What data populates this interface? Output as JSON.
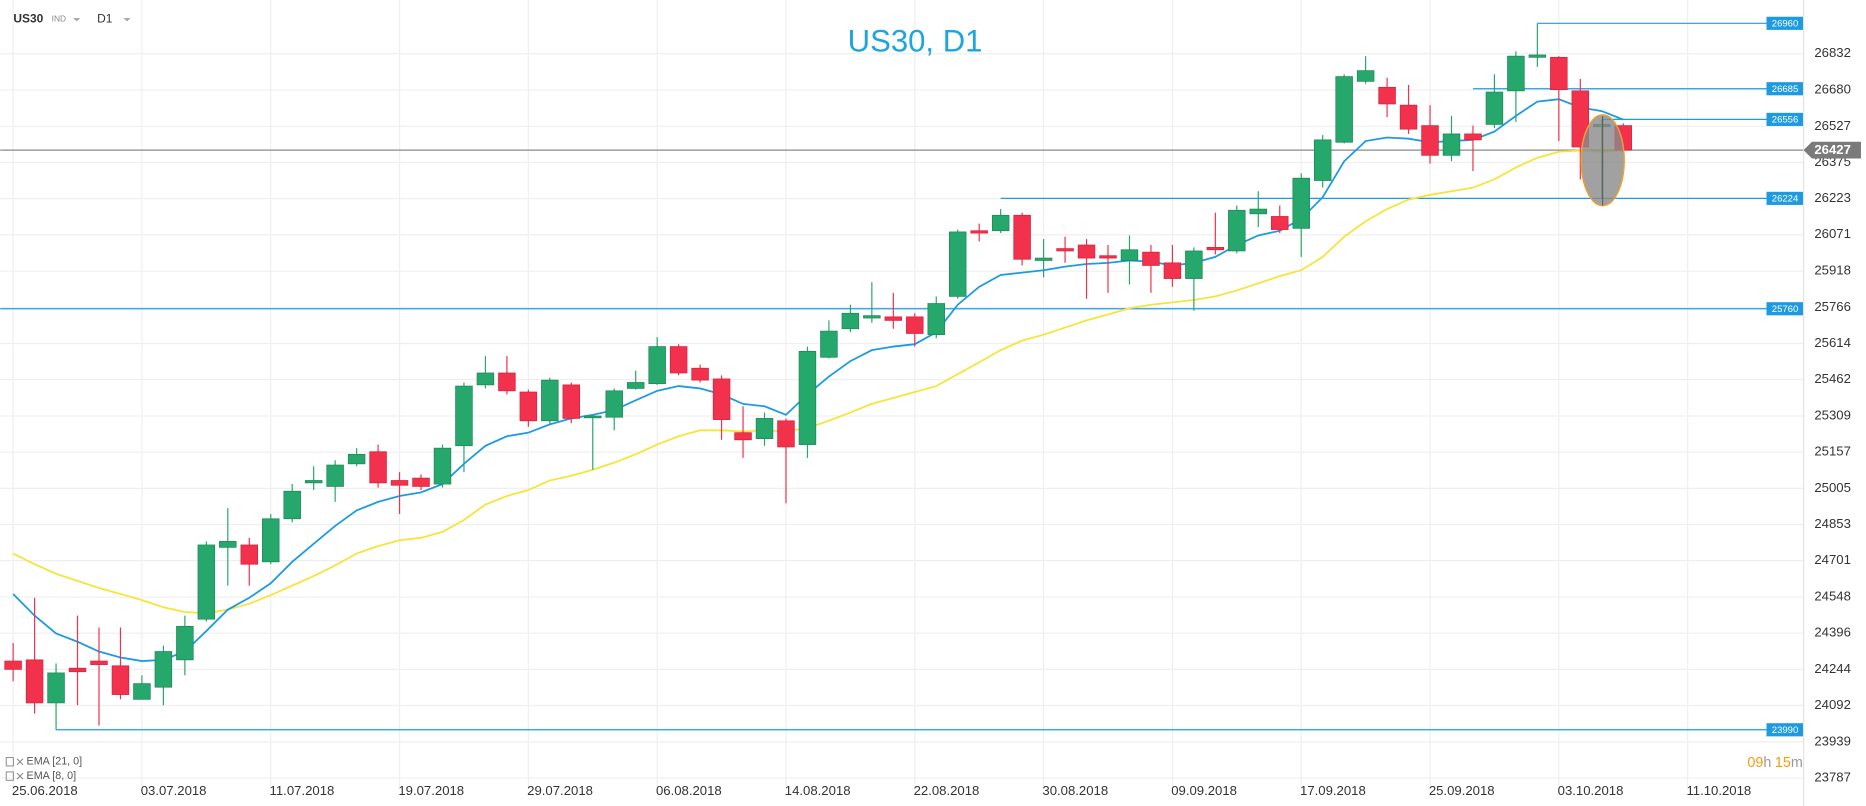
{
  "header": {
    "symbol": "US30",
    "market": "IND",
    "timeframe": "D1"
  },
  "chart_data": {
    "type": "candlestick",
    "title": "US30, D1",
    "ylim": [
      23750,
      27058
    ],
    "xlim": [
      -0.6,
      83.4
    ],
    "yticks": [
      23787,
      23939,
      24092,
      24244,
      24396,
      24548,
      24701,
      24853,
      25005,
      25157,
      25309,
      25462,
      25614,
      25766,
      25918,
      26071,
      26223,
      26375,
      26527,
      26680,
      26832
    ],
    "xticks": [
      {
        "value": 0,
        "label": "25.06.2018"
      },
      {
        "value": 6,
        "label": "03.07.2018"
      },
      {
        "value": 12,
        "label": "11.07.2018"
      },
      {
        "value": 18,
        "label": "19.07.2018"
      },
      {
        "value": 24,
        "label": "29.07.2018"
      },
      {
        "value": 30,
        "label": "06.08.2018"
      },
      {
        "value": 36,
        "label": "14.08.2018"
      },
      {
        "value": 42,
        "label": "22.08.2018"
      },
      {
        "value": 48,
        "label": "30.08.2018"
      },
      {
        "value": 54,
        "label": "09.09.2018"
      },
      {
        "value": 60,
        "label": "17.09.2018"
      },
      {
        "value": 66,
        "label": "25.09.2018"
      },
      {
        "value": 72,
        "label": "03.10.2018"
      },
      {
        "value": 78,
        "label": "11.10.2018"
      }
    ],
    "grid": true,
    "up_color": "#26a86d",
    "down_color": "#f2314c",
    "ohlc": {
      "open": [
        24279,
        24284,
        24103,
        24249,
        24279,
        24259,
        24118,
        24169,
        24284,
        24455,
        24757,
        24767,
        24696,
        24877,
        25028,
        25013,
        25108,
        25159,
        25038,
        25048,
        25023,
        25184,
        25440,
        25490,
        25410,
        25289,
        25440,
        25304,
        25304,
        25425,
        25445,
        25601,
        25510,
        25465,
        25239,
        25214,
        25289,
        25189,
        25556,
        25676,
        25721,
        25726,
        25726,
        25651,
        25812,
        26088,
        26088,
        26153,
        25963,
        26013,
        26028,
        25983,
        25963,
        25998,
        25953,
        25887,
        26018,
        26003,
        26159,
        26148,
        26098,
        26299,
        26460,
        26716,
        26691,
        26616,
        26530,
        26405,
        26495,
        26535,
        26676,
        26817,
        26817,
        26676,
        26525,
        26530
      ],
      "high": [
        24355,
        24545,
        24269,
        24470,
        24420,
        24420,
        24219,
        24344,
        24470,
        24782,
        24922,
        24797,
        24897,
        25023,
        25098,
        25123,
        25174,
        25189,
        25073,
        25063,
        25189,
        25450,
        25561,
        25561,
        25420,
        25470,
        25450,
        25314,
        25425,
        25500,
        25641,
        25611,
        25525,
        25480,
        25350,
        25324,
        25299,
        25601,
        25711,
        25777,
        25872,
        25827,
        25741,
        25812,
        26093,
        26118,
        26179,
        26164,
        26053,
        26063,
        26053,
        26028,
        26068,
        26028,
        26028,
        26018,
        26164,
        26194,
        26254,
        26194,
        26329,
        26490,
        26746,
        26822,
        26731,
        26701,
        26616,
        26571,
        26530,
        26746,
        26842,
        26960,
        26822,
        26726,
        26556,
        26540
      ],
      "low": [
        24194,
        24058,
        23990,
        24093,
        24008,
        24118,
        24118,
        24093,
        24219,
        24445,
        24596,
        24596,
        24686,
        24862,
        24998,
        24948,
        25098,
        25008,
        24897,
        24998,
        25008,
        25073,
        25425,
        25400,
        25264,
        25274,
        25279,
        25083,
        25249,
        25420,
        25440,
        25480,
        25450,
        25209,
        25133,
        25184,
        24942,
        25133,
        25551,
        25661,
        25701,
        25676,
        25601,
        25636,
        25802,
        26043,
        26078,
        25942,
        25892,
        25953,
        25802,
        25827,
        25862,
        25827,
        25852,
        25752,
        25988,
        25993,
        26103,
        26078,
        25978,
        26269,
        26455,
        26706,
        26566,
        26495,
        26370,
        26380,
        26339,
        26520,
        26545,
        26777,
        26465,
        26304,
        26224,
        26415
      ],
      "close": [
        24244,
        24103,
        24229,
        24234,
        24264,
        24138,
        24184,
        24319,
        24425,
        24767,
        24782,
        24686,
        24877,
        24993,
        25038,
        25103,
        25148,
        25028,
        25018,
        25013,
        25174,
        25435,
        25490,
        25415,
        25289,
        25460,
        25299,
        25309,
        25415,
        25450,
        25601,
        25490,
        25460,
        25294,
        25209,
        25299,
        25179,
        25581,
        25666,
        25741,
        25731,
        25711,
        25656,
        25782,
        26083,
        26078,
        26153,
        25968,
        25973,
        26003,
        25973,
        25973,
        26008,
        25942,
        25887,
        26003,
        26008,
        26174,
        26179,
        26093,
        26309,
        26470,
        26736,
        26761,
        26621,
        26515,
        26405,
        26495,
        26470,
        26671,
        26822,
        26827,
        26681,
        26440,
        26535,
        26427
      ]
    },
    "indicators": [
      {
        "name": "EMA [21, 0]",
        "color": "#f7e43a",
        "values": [
          24731,
          24686,
          24646,
          24616,
          24586,
          24561,
          24535,
          24505,
          24485,
          24480,
          24495,
          24520,
          24556,
          24596,
          24636,
          24681,
          24731,
          24762,
          24787,
          24797,
          24822,
          24872,
          24937,
          24973,
          24998,
          25038,
          25058,
          25083,
          25113,
          25148,
          25189,
          25224,
          25249,
          25249,
          25244,
          25249,
          25244,
          25259,
          25289,
          25324,
          25360,
          25385,
          25410,
          25435,
          25485,
          25535,
          25586,
          25626,
          25651,
          25681,
          25711,
          25736,
          25762,
          25777,
          25787,
          25797,
          25812,
          25837,
          25867,
          25897,
          25922,
          25978,
          26063,
          26128,
          26179,
          26219,
          26239,
          26254,
          26269,
          26304,
          26354,
          26395,
          26420,
          26425,
          26420,
          26425
        ]
      },
      {
        "name": "EMA [8, 0]",
        "color": "#1e9be0",
        "values": [
          24561,
          24470,
          24395,
          24360,
          24319,
          24294,
          24279,
          24284,
          24319,
          24405,
          24495,
          24545,
          24606,
          24696,
          24772,
          24847,
          24912,
          24948,
          24973,
          24988,
          25023,
          25108,
          25184,
          25224,
          25239,
          25274,
          25299,
          25314,
          25334,
          25375,
          25415,
          25435,
          25425,
          25400,
          25360,
          25350,
          25314,
          25400,
          25475,
          25540,
          25586,
          25601,
          25611,
          25661,
          25777,
          25852,
          25902,
          25912,
          25922,
          25937,
          25948,
          25953,
          25963,
          25958,
          25942,
          25953,
          25978,
          26028,
          26068,
          26088,
          26138,
          26229,
          26380,
          26465,
          26480,
          26475,
          26460,
          26465,
          26470,
          26505,
          26571,
          26631,
          26641,
          26606,
          26591,
          26555
        ]
      }
    ],
    "levels": [
      {
        "value": 26960,
        "start": 71
      },
      {
        "value": 26685,
        "start": 68
      },
      {
        "value": 26556,
        "start": 74
      },
      {
        "value": 26224,
        "start": 46
      },
      {
        "value": 25760
      },
      {
        "value": 23990,
        "start": 2
      }
    ],
    "level_color": "#1e9be0",
    "last_price": 26427,
    "countdown": {
      "hours": "09",
      "hours_unit": "h",
      "minutes": "15",
      "minutes_unit": "m"
    }
  }
}
